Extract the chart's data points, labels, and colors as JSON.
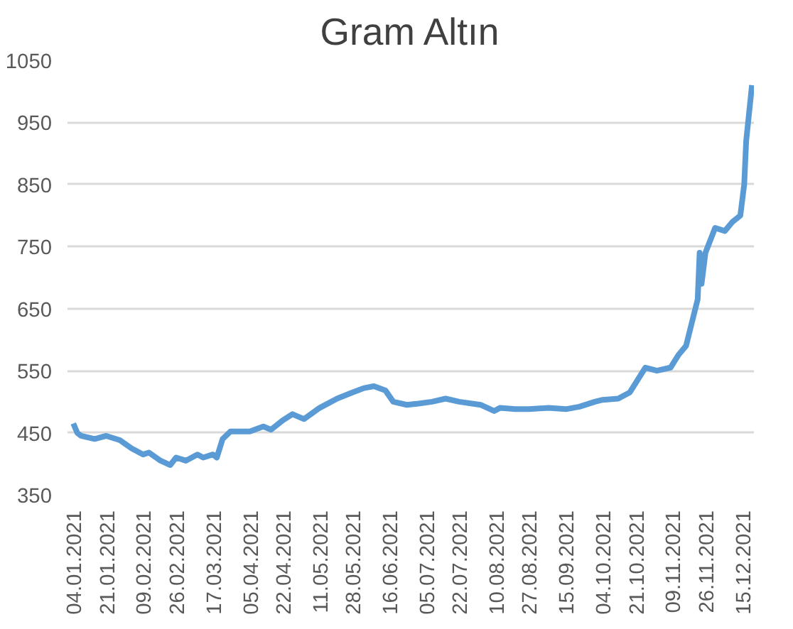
{
  "chart_data": {
    "type": "line",
    "title": "Gram Altın",
    "x": [
      "2021-01-04",
      "2021-01-06",
      "2021-01-08",
      "2021-01-15",
      "2021-01-21",
      "2021-01-28",
      "2021-02-03",
      "2021-02-09",
      "2021-02-12",
      "2021-02-18",
      "2021-02-23",
      "2021-02-26",
      "2021-03-03",
      "2021-03-09",
      "2021-03-12",
      "2021-03-17",
      "2021-03-19",
      "2021-03-22",
      "2021-03-26",
      "2021-04-05",
      "2021-04-12",
      "2021-04-16",
      "2021-04-22",
      "2021-04-27",
      "2021-05-03",
      "2021-05-11",
      "2021-05-20",
      "2021-05-28",
      "2021-06-03",
      "2021-06-08",
      "2021-06-14",
      "2021-06-18",
      "2021-06-25",
      "2021-07-01",
      "2021-07-08",
      "2021-07-15",
      "2021-07-22",
      "2021-08-02",
      "2021-08-09",
      "2021-08-12",
      "2021-08-20",
      "2021-08-27",
      "2021-09-06",
      "2021-09-15",
      "2021-09-22",
      "2021-09-30",
      "2021-10-04",
      "2021-10-12",
      "2021-10-18",
      "2021-10-21",
      "2021-10-26",
      "2021-11-01",
      "2021-11-08",
      "2021-11-12",
      "2021-11-16",
      "2021-11-18",
      "2021-11-22",
      "2021-11-23",
      "2021-11-24",
      "2021-11-26",
      "2021-12-01",
      "2021-12-06",
      "2021-12-10",
      "2021-12-14",
      "2021-12-16",
      "2021-12-17",
      "2021-12-20"
    ],
    "series": [
      {
        "color": "#5b9bd5",
        "values": [
          465,
          450,
          445,
          440,
          445,
          438,
          425,
          415,
          418,
          405,
          398,
          410,
          405,
          415,
          410,
          415,
          410,
          440,
          452,
          452,
          460,
          455,
          470,
          480,
          472,
          490,
          505,
          515,
          522,
          525,
          518,
          500,
          495,
          497,
          500,
          505,
          500,
          495,
          485,
          490,
          488,
          488,
          490,
          488,
          492,
          500,
          503,
          505,
          515,
          530,
          555,
          550,
          555,
          575,
          590,
          615,
          665,
          740,
          690,
          740,
          780,
          775,
          790,
          800,
          850,
          920,
          1010
        ]
      }
    ],
    "xlim": [
      "2021-01-01",
      "2021-12-21"
    ],
    "xticks": [
      {
        "value": "2021-01-04",
        "label": "04.01.2021"
      },
      {
        "value": "2021-01-21",
        "label": "21.01.2021"
      },
      {
        "value": "2021-02-09",
        "label": "09.02.2021"
      },
      {
        "value": "2021-02-26",
        "label": "26.02.2021"
      },
      {
        "value": "2021-03-17",
        "label": "17.03.2021"
      },
      {
        "value": "2021-04-05",
        "label": "05.04.2021"
      },
      {
        "value": "2021-04-22",
        "label": "22.04.2021"
      },
      {
        "value": "2021-05-11",
        "label": "11.05.2021"
      },
      {
        "value": "2021-05-28",
        "label": "28.05.2021"
      },
      {
        "value": "2021-06-16",
        "label": "16.06.2021"
      },
      {
        "value": "2021-07-05",
        "label": "05.07.2021"
      },
      {
        "value": "2021-07-22",
        "label": "22.07.2021"
      },
      {
        "value": "2021-08-10",
        "label": "10.08.2021"
      },
      {
        "value": "2021-08-27",
        "label": "27.08.2021"
      },
      {
        "value": "2021-09-15",
        "label": "15.09.2021"
      },
      {
        "value": "2021-10-04",
        "label": "04.10.2021"
      },
      {
        "value": "2021-10-21",
        "label": "21.10.2021"
      },
      {
        "value": "2021-11-09",
        "label": "09.11.2021"
      },
      {
        "value": "2021-11-26",
        "label": "26.11.2021"
      },
      {
        "value": "2021-12-15",
        "label": "15.12.2021"
      }
    ],
    "ylim": [
      350,
      1050
    ],
    "yticks": [
      350,
      450,
      550,
      650,
      750,
      850,
      950,
      1050
    ],
    "grid": "y",
    "marker": "none",
    "line_style": "solid"
  }
}
